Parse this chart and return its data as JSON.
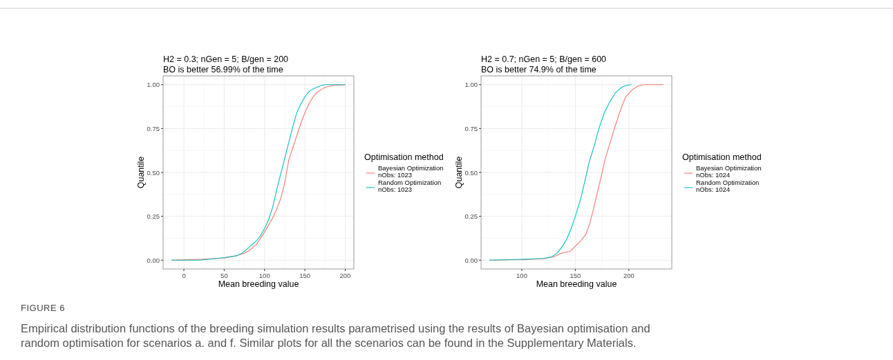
{
  "chart_data": [
    {
      "type": "line",
      "title": "H2 = 0.3; nGen = 5; B/gen = 200",
      "subtitle": "BO is better 56.99% of the time",
      "xlabel": "Mean breeding value",
      "ylabel": "Quantile",
      "legend_title": "Optimisation method",
      "legend": "right",
      "grid": true,
      "xlim": [
        -25.75,
        210.75
      ],
      "xticks": [
        0,
        50,
        100,
        150,
        200
      ],
      "ylim": [
        -0.05,
        1.05
      ],
      "yticks": [
        {
          "value": 0,
          "label": "0.00"
        },
        {
          "value": 0.25,
          "label": "0.25"
        },
        {
          "value": 0.5,
          "label": "0.50"
        },
        {
          "value": 0.75,
          "label": "0.75"
        },
        {
          "value": 1,
          "label": "1.00"
        }
      ],
      "annotations": [
        "FIGURE 6",
        "Empirical distribution functions of the breeding simulation results parametrised using the results of Bayesian optimisation and random optimisation for scenarios a. and f. Similar plots for all the scenarios can be found in the Supplementary Materials."
      ],
      "series": [
        {
          "name": "Bayesian Optimization\nnObs: 1023",
          "color": "#f8766d",
          "x": [
            -15,
            20,
            50,
            65,
            75,
            81,
            90,
            98,
            105,
            110,
            115,
            120,
            125,
            130,
            135,
            140,
            145,
            150,
            155,
            160,
            165,
            170,
            175,
            185,
            200
          ],
          "values": [
            0,
            0.005,
            0.012,
            0.025,
            0.04,
            0.055,
            0.09,
            0.145,
            0.2,
            0.24,
            0.29,
            0.35,
            0.44,
            0.57,
            0.64,
            0.71,
            0.78,
            0.84,
            0.89,
            0.93,
            0.955,
            0.97,
            0.985,
            0.995,
            1
          ]
        },
        {
          "name": "Random Optimization\nnObs: 1023",
          "color": "#00bfc4",
          "x": [
            -15,
            20,
            30,
            50,
            65,
            70,
            75,
            80,
            90,
            95,
            100,
            105,
            110,
            115,
            120,
            125,
            130,
            135,
            140,
            145,
            150,
            155,
            160,
            165,
            170,
            175,
            200
          ],
          "values": [
            0,
            0,
            0.005,
            0.015,
            0.025,
            0.035,
            0.05,
            0.07,
            0.11,
            0.14,
            0.18,
            0.23,
            0.3,
            0.4,
            0.49,
            0.58,
            0.67,
            0.76,
            0.84,
            0.89,
            0.93,
            0.96,
            0.975,
            0.985,
            0.995,
            1,
            1
          ]
        }
      ]
    },
    {
      "type": "line",
      "title": "H2 = 0.7; nGen = 5; B/gen = 600",
      "subtitle": "BO is better 74.9% of the time",
      "xlabel": "Mean breeding value",
      "ylabel": "Quantile",
      "legend_title": "Optimisation method",
      "legend": "right",
      "grid": true,
      "xlim": [
        61.9,
        240.1
      ],
      "xticks": [
        100,
        150,
        200
      ],
      "ylim": [
        -0.05,
        1.05
      ],
      "yticks": [
        {
          "value": 0,
          "label": "0.00"
        },
        {
          "value": 0.25,
          "label": "0.25"
        },
        {
          "value": 0.5,
          "label": "0.50"
        },
        {
          "value": 0.75,
          "label": "0.75"
        },
        {
          "value": 1,
          "label": "1.00"
        }
      ],
      "series": [
        {
          "name": "Bayesian Optimization\nnObs: 1024",
          "color": "#f8766d",
          "x": [
            70,
            100,
            120,
            130,
            137,
            145,
            150,
            155,
            160,
            163,
            166,
            170,
            175,
            178,
            183,
            188,
            193,
            197,
            203,
            208,
            213,
            232
          ],
          "values": [
            0,
            0.003,
            0.008,
            0.02,
            0.04,
            0.05,
            0.08,
            0.11,
            0.15,
            0.2,
            0.27,
            0.37,
            0.5,
            0.58,
            0.68,
            0.78,
            0.87,
            0.93,
            0.97,
            0.99,
            1,
            1
          ]
        },
        {
          "name": "Random Optimization\nnObs: 1024",
          "color": "#00bfc4",
          "x": [
            70,
            100,
            120,
            128,
            133,
            138,
            142,
            146,
            150,
            155,
            160,
            163,
            168,
            172,
            177,
            182,
            187,
            192,
            197,
            202
          ],
          "values": [
            0,
            0.005,
            0.01,
            0.02,
            0.04,
            0.08,
            0.12,
            0.18,
            0.25,
            0.35,
            0.48,
            0.56,
            0.66,
            0.75,
            0.84,
            0.9,
            0.95,
            0.98,
            0.995,
            1
          ]
        }
      ]
    }
  ]
}
